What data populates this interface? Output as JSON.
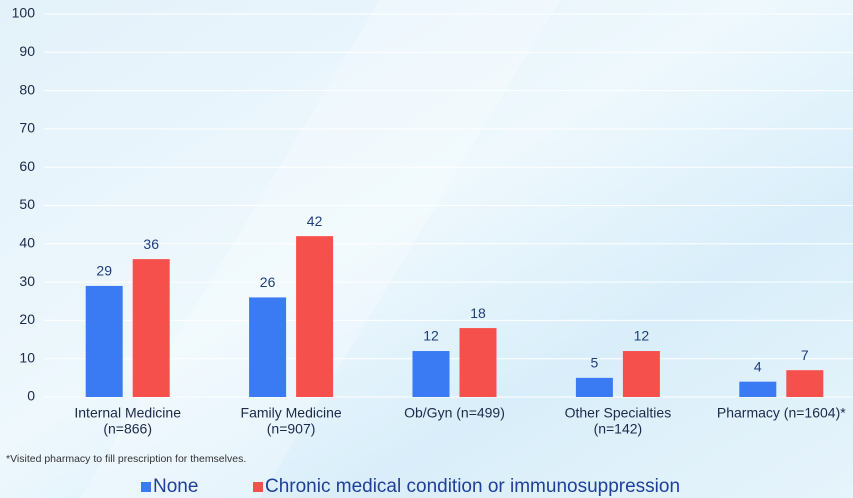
{
  "chart_data": {
    "type": "bar",
    "categories": [
      [
        "Internal Medicine",
        "(n=866)"
      ],
      [
        "Family Medicine",
        "(n=907)"
      ],
      [
        "Ob/Gyn (n=499)"
      ],
      [
        "Other Specialties",
        "(n=142)"
      ],
      [
        "Pharmacy (n=1604)*"
      ]
    ],
    "series": [
      {
        "name": "None",
        "color": "#3a7af3",
        "values": [
          29,
          26,
          12,
          5,
          4
        ]
      },
      {
        "name": "Chronic medical condition or immunosuppression",
        "color": "#f6504d",
        "values": [
          36,
          42,
          18,
          12,
          7
        ]
      }
    ],
    "ylim": [
      0,
      100
    ],
    "yticks": [
      0,
      10,
      20,
      30,
      40,
      50,
      60,
      70,
      80,
      90,
      100
    ],
    "grid": true,
    "note": "*Visited pharmacy to fill prescription for themselves."
  }
}
